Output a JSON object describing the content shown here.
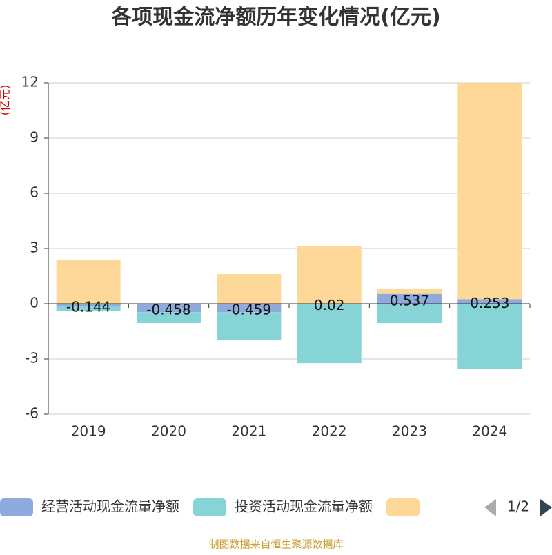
{
  "chart_data": {
    "type": "bar",
    "stacked": true,
    "title": "各项现金流净额历年变化情况(亿元)",
    "y_label": "(亿元)",
    "source": "制图数据来自恒生聚源数据库",
    "page_indicator": "1/2",
    "categories": [
      "2019",
      "2020",
      "2021",
      "2022",
      "2023",
      "2024"
    ],
    "series": [
      {
        "name": "经营活动现金流量净额",
        "color": "#8faadc",
        "values": [
          -0.144,
          -0.458,
          -0.459,
          0.02,
          0.537,
          0.253
        ]
      },
      {
        "name": "投资活动现金流量净额",
        "color": "#86d4d6",
        "values": [
          -0.27,
          -0.59,
          -1.53,
          -3.23,
          -1.05,
          -3.56
        ]
      },
      {
        "color": "#fdd898",
        "values": [
          2.4,
          0,
          1.61,
          3.11,
          0.26,
          11.75
        ]
      }
    ],
    "ylim": [
      -6,
      12
    ],
    "yticks": [
      -6,
      -3,
      0,
      3,
      6,
      9,
      12
    ],
    "grid": true
  }
}
